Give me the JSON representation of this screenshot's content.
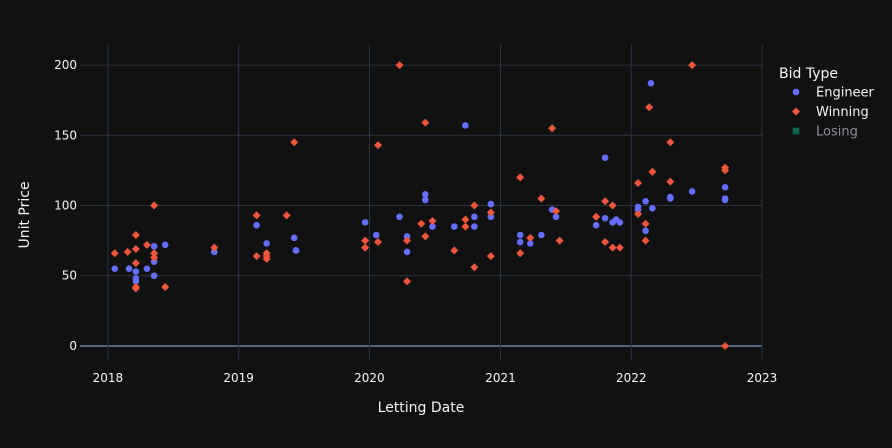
{
  "chart_data": {
    "type": "scatter",
    "xlabel": "Letting Date",
    "ylabel": "Unit Price",
    "x_axis_type": "date",
    "xlim": [
      "2017-10-15",
      "2023-01-01"
    ],
    "ylim": [
      -10,
      215
    ],
    "x_ticks": [
      "2018",
      "2019",
      "2020",
      "2021",
      "2022",
      "2023"
    ],
    "y_ticks": [
      0,
      50,
      100,
      150,
      200
    ],
    "grid": true,
    "background": "#111111",
    "grid_color": "#283442",
    "legend": {
      "title": "Bid Type",
      "position": "top-right"
    },
    "series": [
      {
        "name": "Engineer",
        "marker": "circle",
        "color": "#636efa",
        "opacity": 1,
        "points": [
          [
            "2018-01-20",
            55
          ],
          [
            "2018-03-01",
            55
          ],
          [
            "2018-03-20",
            53
          ],
          [
            "2018-03-20",
            48
          ],
          [
            "2018-03-20",
            46
          ],
          [
            "2018-04-20",
            55
          ],
          [
            "2018-05-10",
            60
          ],
          [
            "2018-05-10",
            71
          ],
          [
            "2018-05-10",
            50
          ],
          [
            "2018-06-10",
            72
          ],
          [
            "2018-10-25",
            67
          ],
          [
            "2019-02-20",
            86
          ],
          [
            "2019-03-20",
            73
          ],
          [
            "2019-06-10",
            68
          ],
          [
            "2019-06-10",
            68
          ],
          [
            "2019-06-05",
            77
          ],
          [
            "2019-12-20",
            88
          ],
          [
            "2020-01-20",
            79
          ],
          [
            "2020-03-25",
            92
          ],
          [
            "2020-04-15",
            78
          ],
          [
            "2020-04-15",
            67
          ],
          [
            "2020-06-05",
            108
          ],
          [
            "2020-06-05",
            104
          ],
          [
            "2020-06-25",
            85
          ],
          [
            "2020-08-25",
            85
          ],
          [
            "2020-09-25",
            157
          ],
          [
            "2020-10-20",
            92
          ],
          [
            "2020-10-20",
            85
          ],
          [
            "2020-12-05",
            101
          ],
          [
            "2020-12-05",
            92
          ],
          [
            "2021-02-25",
            79
          ],
          [
            "2021-02-25",
            74
          ],
          [
            "2021-03-25",
            73
          ],
          [
            "2021-04-25",
            79
          ],
          [
            "2021-05-25",
            97
          ],
          [
            "2021-06-05",
            92
          ],
          [
            "2021-09-25",
            86
          ],
          [
            "2021-10-20",
            134
          ],
          [
            "2021-10-20",
            91
          ],
          [
            "2021-11-10",
            88
          ],
          [
            "2021-11-20",
            90
          ],
          [
            "2021-11-30",
            88
          ],
          [
            "2022-01-20",
            99
          ],
          [
            "2022-01-20",
            97
          ],
          [
            "2022-02-10",
            82
          ],
          [
            "2022-02-10",
            103
          ],
          [
            "2022-02-25",
            187
          ],
          [
            "2022-03-01",
            98
          ],
          [
            "2022-04-20",
            106
          ],
          [
            "2022-04-20",
            105
          ],
          [
            "2022-06-20",
            110
          ],
          [
            "2022-09-20",
            113
          ],
          [
            "2022-09-20",
            105
          ],
          [
            "2022-09-20",
            104
          ]
        ]
      },
      {
        "name": "Winning",
        "marker": "diamond",
        "color": "#ef553b",
        "opacity": 1,
        "points": [
          [
            "2018-01-20",
            66
          ],
          [
            "2018-02-25",
            67
          ],
          [
            "2018-03-20",
            79
          ],
          [
            "2018-03-20",
            69
          ],
          [
            "2018-03-20",
            59
          ],
          [
            "2018-03-20",
            42
          ],
          [
            "2018-03-20",
            41
          ],
          [
            "2018-04-20",
            72
          ],
          [
            "2018-05-10",
            100
          ],
          [
            "2018-05-10",
            66
          ],
          [
            "2018-05-10",
            63
          ],
          [
            "2018-06-10",
            42
          ],
          [
            "2018-10-25",
            70
          ],
          [
            "2019-02-20",
            93
          ],
          [
            "2019-02-20",
            64
          ],
          [
            "2019-03-20",
            66
          ],
          [
            "2019-03-20",
            64
          ],
          [
            "2019-03-20",
            62
          ],
          [
            "2019-05-15",
            93
          ],
          [
            "2019-06-05",
            145
          ],
          [
            "2019-12-20",
            75
          ],
          [
            "2019-12-20",
            70
          ],
          [
            "2020-01-25",
            143
          ],
          [
            "2020-01-25",
            74
          ],
          [
            "2020-03-25",
            200
          ],
          [
            "2020-04-15",
            75
          ],
          [
            "2020-04-15",
            46
          ],
          [
            "2020-05-25",
            87
          ],
          [
            "2020-06-05",
            159
          ],
          [
            "2020-06-05",
            78
          ],
          [
            "2020-06-25",
            89
          ],
          [
            "2020-08-25",
            68
          ],
          [
            "2020-09-25",
            90
          ],
          [
            "2020-09-25",
            85
          ],
          [
            "2020-10-20",
            100
          ],
          [
            "2020-10-20",
            56
          ],
          [
            "2020-12-05",
            95
          ],
          [
            "2020-12-05",
            64
          ],
          [
            "2021-02-25",
            120
          ],
          [
            "2021-02-25",
            66
          ],
          [
            "2021-03-25",
            77
          ],
          [
            "2021-04-25",
            105
          ],
          [
            "2021-05-25",
            155
          ],
          [
            "2021-06-05",
            96
          ],
          [
            "2021-06-15",
            75
          ],
          [
            "2021-09-25",
            92
          ],
          [
            "2021-10-20",
            103
          ],
          [
            "2021-10-20",
            74
          ],
          [
            "2021-11-10",
            100
          ],
          [
            "2021-11-10",
            70
          ],
          [
            "2021-11-30",
            70
          ],
          [
            "2022-01-20",
            116
          ],
          [
            "2022-01-20",
            94
          ],
          [
            "2022-02-10",
            87
          ],
          [
            "2022-02-10",
            75
          ],
          [
            "2022-02-20",
            170
          ],
          [
            "2022-03-01",
            124
          ],
          [
            "2022-04-20",
            145
          ],
          [
            "2022-04-20",
            117
          ],
          [
            "2022-06-20",
            200
          ],
          [
            "2022-09-20",
            127
          ],
          [
            "2022-09-20",
            125
          ],
          [
            "2022-09-20",
            0
          ]
        ]
      },
      {
        "name": "Losing",
        "marker": "square",
        "color": "#00cc96",
        "opacity": 0.45,
        "points": []
      }
    ]
  }
}
